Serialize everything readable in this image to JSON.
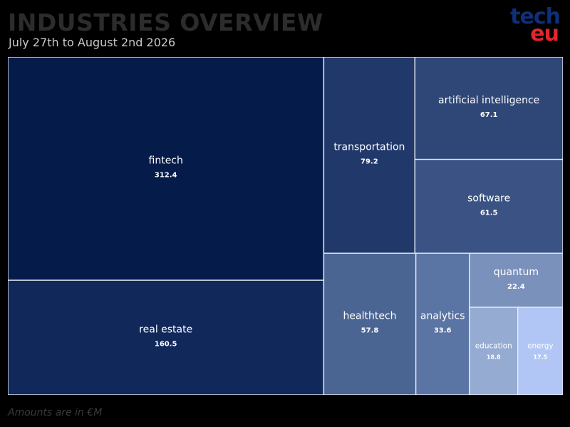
{
  "header": {
    "title": "INDUSTRIES OVERVIEW",
    "subtitle": "July 27th to August 2nd 2026"
  },
  "logo": {
    "line1": "tech",
    "line2": "eu"
  },
  "footnote": "Amounts are in €M",
  "chart_data": {
    "type": "treemap",
    "title": "INDUSTRIES OVERVIEW",
    "subtitle": "July 27th to August 2nd 2026",
    "unit": "€M",
    "items": [
      {
        "label": "fintech",
        "value": 312.4,
        "color": "#051b4a"
      },
      {
        "label": "real estate",
        "value": 160.5,
        "color": "#11285a"
      },
      {
        "label": "transportation",
        "value": 79.2,
        "color": "#20386a"
      },
      {
        "label": "artificial intelligence",
        "value": 67.1,
        "color": "#2f4777"
      },
      {
        "label": "software",
        "value": 61.5,
        "color": "#3a5384"
      },
      {
        "label": "healthtech",
        "value": 57.8,
        "color": "#4b6593"
      },
      {
        "label": "analytics",
        "value": 33.6,
        "color": "#5a74a3"
      },
      {
        "label": "quantum",
        "value": 22.4,
        "color": "#7a91bc"
      },
      {
        "label": "education",
        "value": 18.8,
        "color": "#96abd2"
      },
      {
        "label": "energy",
        "value": 17.5,
        "color": "#b1c6f4"
      }
    ]
  }
}
